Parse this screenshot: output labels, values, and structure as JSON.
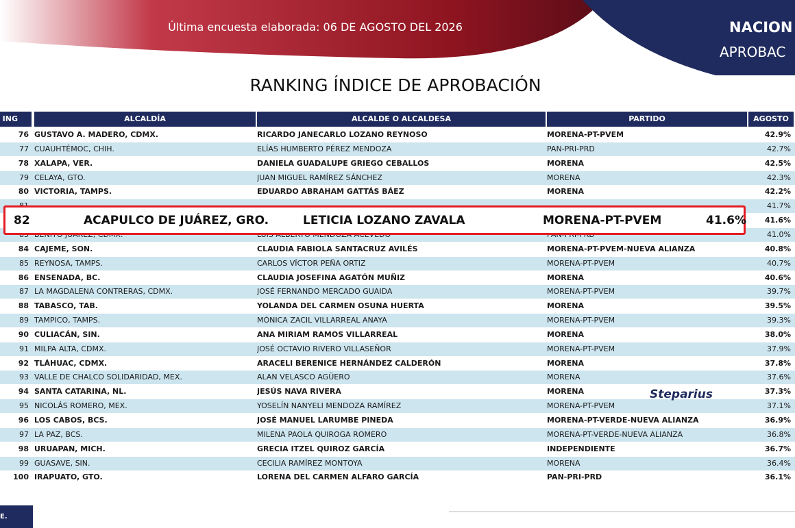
{
  "header": {
    "survey": "Última encuesta elaborada: 06 DE AGOSTO DEL 2026",
    "corner_1": "NACION",
    "corner_2": "APROBAC"
  },
  "title": "RANKING ÍNDICE DE APROBACIÓN",
  "table": {
    "columns": [
      "ING",
      "ALCALDÍA",
      "ALCALDE O ALCALDESA",
      "PARTIDO",
      "AGOSTO"
    ],
    "rows": [
      {
        "rank": "76",
        "alcaldia": "GUSTAVO A. MADERO, CDMX.",
        "alcalde": "RICARDO JANECARLO LOZANO REYNOSO",
        "partido": "MORENA-PT-PVEM",
        "agosto": "42.9%"
      },
      {
        "rank": "77",
        "alcaldia": "CUAUHTÉMOC, CHIH.",
        "alcalde": "ELÍAS HUMBERTO PÉREZ MENDOZA",
        "partido": "PAN-PRI-PRD",
        "agosto": "42.7%"
      },
      {
        "rank": "78",
        "alcaldia": "XALAPA, VER.",
        "alcalde": "DANIELA GUADALUPE GRIEGO CEBALLOS",
        "partido": "MORENA",
        "agosto": "42.5%"
      },
      {
        "rank": "79",
        "alcaldia": "CELAYA, GTO.",
        "alcalde": "JUAN MIGUEL RAMÍREZ SÁNCHEZ",
        "partido": "MORENA",
        "agosto": "42.3%"
      },
      {
        "rank": "80",
        "alcaldia": "VICTORIA, TAMPS.",
        "alcalde": "EDUARDO ABRAHAM GATTÁS BÁEZ",
        "partido": "MORENA",
        "agosto": "42.2%"
      },
      {
        "rank": "81",
        "agosto": "41.7%"
      },
      {
        "agosto": "41.6%"
      },
      {
        "rank": "83",
        "alcaldia": "BENITO JUÁREZ, CDMX.",
        "alcalde": "LUIS ALBERTO MENDOZA ACEVEDO",
        "partido": "PAN-PRI-PRD",
        "agosto": "41.0%"
      },
      {
        "rank": "84",
        "alcaldia": "CAJEME, SON.",
        "alcalde": "CLAUDIA FABIOLA SANTACRUZ AVILÉS",
        "partido": "MORENA-PT-PVEM-NUEVA ALIANZA",
        "agosto": "40.8%"
      },
      {
        "rank": "85",
        "alcaldia": "REYNOSA, TAMPS.",
        "alcalde": "CARLOS VÍCTOR PEÑA ORTIZ",
        "partido": "MORENA-PT-PVEM",
        "agosto": "40.7%"
      },
      {
        "rank": "86",
        "alcaldia": "ENSENADA, BC.",
        "alcalde": "CLAUDIA JOSEFINA AGATÓN MUÑIZ",
        "partido": "MORENA",
        "agosto": "40.6%"
      },
      {
        "rank": "87",
        "alcaldia": "LA MAGDALENA CONTRERAS, CDMX.",
        "alcalde": "JOSÉ FERNANDO MERCADO GUAIDA",
        "partido": "MORENA-PT-PVEM",
        "agosto": "39.7%"
      },
      {
        "rank": "88",
        "alcaldia": "TABASCO, TAB.",
        "alcalde": "YOLANDA DEL CARMEN OSUNA HUERTA",
        "partido": "MORENA",
        "agosto": "39.5%"
      },
      {
        "rank": "89",
        "alcaldia": "TAMPICO, TAMPS.",
        "alcalde": "MÓNICA ZACIL VILLARREAL ANAYA",
        "partido": "MORENA-PT-PVEM",
        "agosto": "39.3%"
      },
      {
        "rank": "90",
        "alcaldia": "CULIACÁN, SIN.",
        "alcalde": "ANA MIRIAM RAMOS VILLARREAL",
        "partido": "MORENA",
        "agosto": "38.0%"
      },
      {
        "rank": "91",
        "alcaldia": "MILPA ALTA, CDMX.",
        "alcalde": "JOSÉ OCTAVIO RIVERO VILLASEÑOR",
        "partido": "MORENA-PT-PVEM",
        "agosto": "37.9%"
      },
      {
        "rank": "92",
        "alcaldia": "TLÁHUAC, CDMX.",
        "alcalde": "ARACELI BERENICE HERNÁNDEZ CALDERÓN",
        "partido": "MORENA",
        "agosto": "37.8%"
      },
      {
        "rank": "93",
        "alcaldia": "VALLE DE CHALCO SOLIDARIDAD, MEX.",
        "alcalde": "ALAN VELASCO AGÜERO",
        "partido": "MORENA",
        "agosto": "37.6%"
      },
      {
        "rank": "94",
        "alcaldia": "SANTA CATARINA, NL.",
        "alcalde": "JESÚS NAVA RIVERA",
        "partido": "MORENA",
        "agosto": "37.3%"
      },
      {
        "rank": "95",
        "alcaldia": "NICOLÁS ROMERO, MEX.",
        "alcalde": "YOSELÍN NANYELI MENDOZA RAMÍREZ",
        "partido": "MORENA-PT-PVEM",
        "agosto": "37.1%"
      },
      {
        "rank": "96",
        "alcaldia": "LOS CABOS, BCS.",
        "alcalde": "JOSÉ MANUEL LARUMBE PINEDA",
        "partido": "MORENA-PT-VERDE-NUEVA ALIANZA",
        "agosto": "36.9%"
      },
      {
        "rank": "97",
        "alcaldia": "LA PAZ, BCS.",
        "alcalde": "MILENA PAOLA QUIROGA ROMERO",
        "partido": "MORENA-PT-VERDE-NUEVA ALIANZA",
        "agosto": "36.8%"
      },
      {
        "rank": "98",
        "alcaldia": "URUAPAN, MICH.",
        "alcalde": "GRECIA ITZEL QUIROZ GARCÍA",
        "partido": "INDEPENDIENTE",
        "agosto": "36.7%"
      },
      {
        "rank": "99",
        "alcaldia": "GUASAVE, SIN.",
        "alcalde": "CECILIA RAMÍREZ MONTOYA",
        "partido": "MORENA",
        "agosto": "36.4%"
      },
      {
        "rank": "100",
        "alcaldia": "IRAPUATO, GTO.",
        "alcalde": "LORENA DEL CARMEN ALFARO GARCÍA",
        "partido": "PAN-PRI-PRD",
        "agosto": "36.1%"
      }
    ]
  },
  "highlight": {
    "rank": "82",
    "alcaldia": "ACAPULCO DE JUÁREZ, GRO.",
    "alcalde": "LETICIA LOZANO ZAVALA",
    "partido": "MORENA-PT-PVEM",
    "agosto": "41.6%"
  },
  "watermark": "Steparius",
  "footer": "E."
}
